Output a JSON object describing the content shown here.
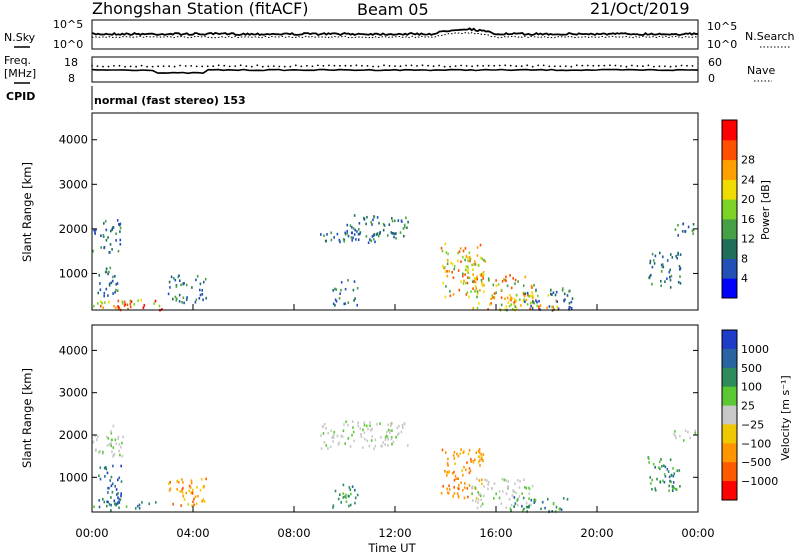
{
  "header": {
    "station": "Zhongshan Station (fitACF)",
    "beam": "Beam 05",
    "date": "21/Oct/2019"
  },
  "panels": {
    "nsky_label": "N.Sky",
    "nsky_ticks": [
      "10^5",
      "10^0"
    ],
    "nsearch_label": "N.Search",
    "nsearch_ticks": [
      "10^5",
      "10^0"
    ],
    "freq_label_top": "Freq.",
    "freq_label_bottom": "[MHz]",
    "freq_ticks": [
      "18",
      "8"
    ],
    "nave_label": "Nave",
    "nave_ticks": [
      "60",
      "0"
    ],
    "cpid_label": "CPID",
    "cpid_value": "normal (fast stereo) 153"
  },
  "chart_data": [
    {
      "type": "heatmap",
      "name": "power",
      "ylabel": "Slant Range [km]",
      "yticks": [
        1000,
        2000,
        3000,
        4000
      ],
      "ylim": [
        180,
        4600
      ],
      "xlim": [
        0,
        24
      ],
      "colorbar_label": "Power [dB]",
      "colorbar_ticks": [
        "4",
        "8",
        "12",
        "16",
        "20",
        "24",
        "28"
      ],
      "colorbar_colors": [
        "#0000ff",
        "#2350b4",
        "#1e6e5a",
        "#46a046",
        "#7dd228",
        "#f0dc00",
        "#ffa000",
        "#ff5000",
        "#ff0000"
      ],
      "blobs": [
        {
          "t": [
            0.0,
            1.2
          ],
          "r": [
            1500,
            2250
          ],
          "level": "low"
        },
        {
          "t": [
            0.0,
            2.0
          ],
          "r": [
            250,
            450
          ],
          "level": "high"
        },
        {
          "t": [
            0.2,
            1.0
          ],
          "r": [
            500,
            1200
          ],
          "level": "low"
        },
        {
          "t": [
            1.0,
            2.8
          ],
          "r": [
            200,
            420
          ],
          "level": "max"
        },
        {
          "t": [
            3.0,
            4.5
          ],
          "r": [
            350,
            1000
          ],
          "level": "low"
        },
        {
          "t": [
            9.0,
            11.5
          ],
          "r": [
            1700,
            1950
          ],
          "level": "low"
        },
        {
          "t": [
            10.0,
            12.5
          ],
          "r": [
            1750,
            2350
          ],
          "level": "low"
        },
        {
          "t": [
            9.5,
            10.5
          ],
          "r": [
            300,
            900
          ],
          "level": "low"
        },
        {
          "t": [
            13.8,
            15.5
          ],
          "r": [
            500,
            1700
          ],
          "level": "mid"
        },
        {
          "t": [
            14.8,
            15.6
          ],
          "r": [
            800,
            1300
          ],
          "level": "high"
        },
        {
          "t": [
            15.0,
            17.5
          ],
          "r": [
            200,
            1000
          ],
          "level": "mid"
        },
        {
          "t": [
            16.5,
            18.5
          ],
          "r": [
            200,
            600
          ],
          "level": "high"
        },
        {
          "t": [
            17.0,
            19.0
          ],
          "r": [
            200,
            700
          ],
          "level": "low"
        },
        {
          "t": [
            22.0,
            23.3
          ],
          "r": [
            700,
            1500
          ],
          "level": "low"
        },
        {
          "t": [
            23.0,
            24.0
          ],
          "r": [
            1850,
            2150
          ],
          "level": "low"
        }
      ]
    },
    {
      "type": "heatmap",
      "name": "velocity",
      "ylabel": "Slant Range [km]",
      "xlabel": "Time UT",
      "xticks": [
        "00:00",
        "04:00",
        "08:00",
        "12:00",
        "16:00",
        "20:00",
        "00:00"
      ],
      "yticks": [
        1000,
        2000,
        3000,
        4000
      ],
      "ylim": [
        180,
        4600
      ],
      "xlim": [
        0,
        24
      ],
      "colorbar_label": "Velocity [m s⁻¹]",
      "colorbar_ticks": [
        "1000",
        "500",
        "100",
        "25",
        "−25",
        "−100",
        "−500",
        "−1000"
      ],
      "colorbar_colors": [
        "#1e3cc8",
        "#2864a0",
        "#2d8c5a",
        "#5ac832",
        "#c8c8c8",
        "#f0c800",
        "#ff9600",
        "#ff5a00",
        "#ff0000"
      ],
      "blobs": [
        {
          "t": [
            0.0,
            1.2
          ],
          "r": [
            1500,
            2250
          ],
          "level": "zero"
        },
        {
          "t": [
            0.0,
            2.5
          ],
          "r": [
            250,
            450
          ],
          "level": "pos"
        },
        {
          "t": [
            0.2,
            1.3
          ],
          "r": [
            400,
            1300
          ],
          "level": "posbig"
        },
        {
          "t": [
            3.0,
            4.5
          ],
          "r": [
            350,
            1000
          ],
          "level": "neg"
        },
        {
          "t": [
            9.0,
            12.5
          ],
          "r": [
            1700,
            2350
          ],
          "level": "zero"
        },
        {
          "t": [
            9.5,
            10.5
          ],
          "r": [
            300,
            900
          ],
          "level": "pos"
        },
        {
          "t": [
            13.8,
            15.5
          ],
          "r": [
            500,
            1700
          ],
          "level": "neg"
        },
        {
          "t": [
            15.0,
            17.5
          ],
          "r": [
            300,
            1000
          ],
          "level": "zero"
        },
        {
          "t": [
            16.5,
            18.8
          ],
          "r": [
            200,
            600
          ],
          "level": "pos"
        },
        {
          "t": [
            22.0,
            23.3
          ],
          "r": [
            700,
            1500
          ],
          "level": "pos"
        },
        {
          "t": [
            23.0,
            24.0
          ],
          "r": [
            1850,
            2150
          ],
          "level": "zero"
        }
      ]
    }
  ]
}
